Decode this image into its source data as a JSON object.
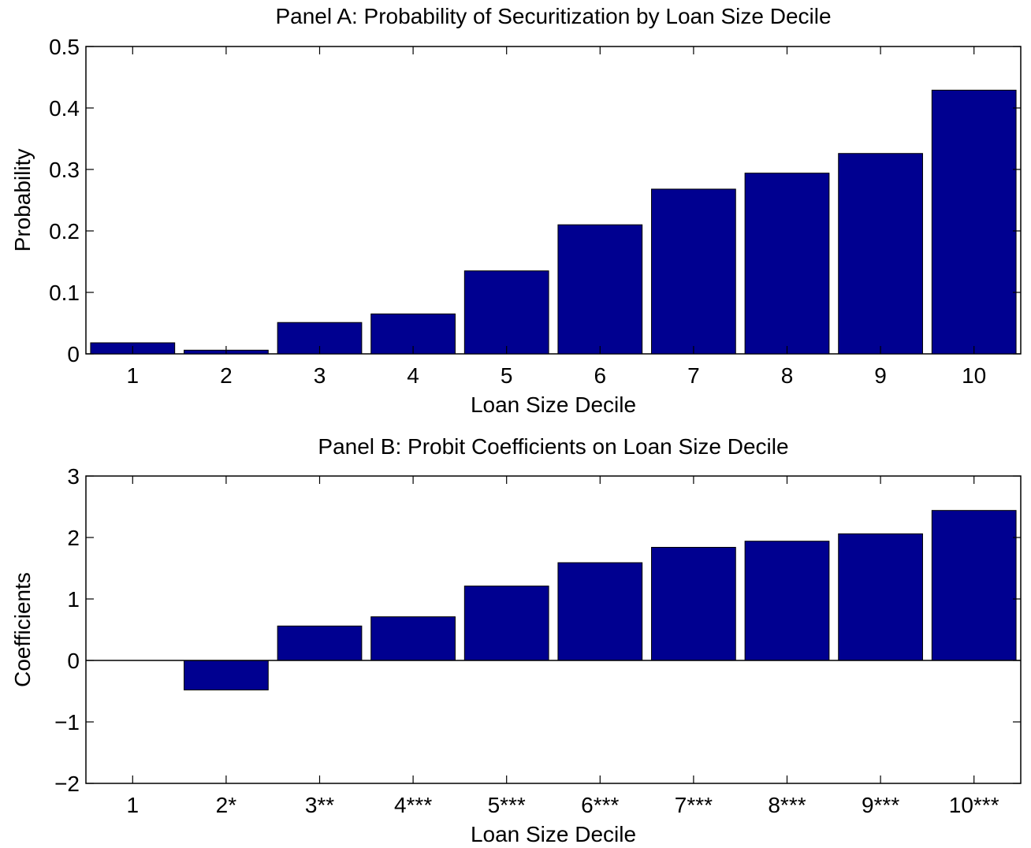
{
  "colors": {
    "bar": "#000090",
    "axis": "#000000",
    "background": "#ffffff"
  },
  "chart_data": [
    {
      "type": "bar",
      "title": "Panel A: Probability of Securitization by Loan Size Decile",
      "xlabel": "Loan Size Decile",
      "ylabel": "Probability",
      "categories": [
        "1",
        "2",
        "3",
        "4",
        "5",
        "6",
        "7",
        "8",
        "9",
        "10"
      ],
      "values": [
        0.018,
        0.006,
        0.051,
        0.065,
        0.135,
        0.21,
        0.268,
        0.294,
        0.326,
        0.429
      ],
      "ylim": [
        0,
        0.5
      ],
      "yticks": [
        0,
        0.1,
        0.2,
        0.3,
        0.4,
        0.5
      ],
      "ytick_labels": [
        "0",
        "0.1",
        "0.2",
        "0.3",
        "0.4",
        "0.5"
      ],
      "grid": false,
      "legend": "none"
    },
    {
      "type": "bar",
      "title": "Panel B: Probit Coefficients on Loan Size Decile",
      "xlabel": "Loan Size Decile",
      "ylabel": "Coefficients",
      "categories": [
        "1",
        "2*",
        "3**",
        "4***",
        "5***",
        "6***",
        "7***",
        "8***",
        "9***",
        "10***"
      ],
      "values": [
        0,
        -0.48,
        0.56,
        0.71,
        1.21,
        1.59,
        1.84,
        1.94,
        2.06,
        2.44
      ],
      "ylim": [
        -2,
        3
      ],
      "yticks": [
        -2,
        -1,
        0,
        1,
        2,
        3
      ],
      "ytick_labels": [
        "−2",
        "−1",
        "0",
        "1",
        "2",
        "3"
      ],
      "grid": false,
      "legend": "none"
    }
  ]
}
